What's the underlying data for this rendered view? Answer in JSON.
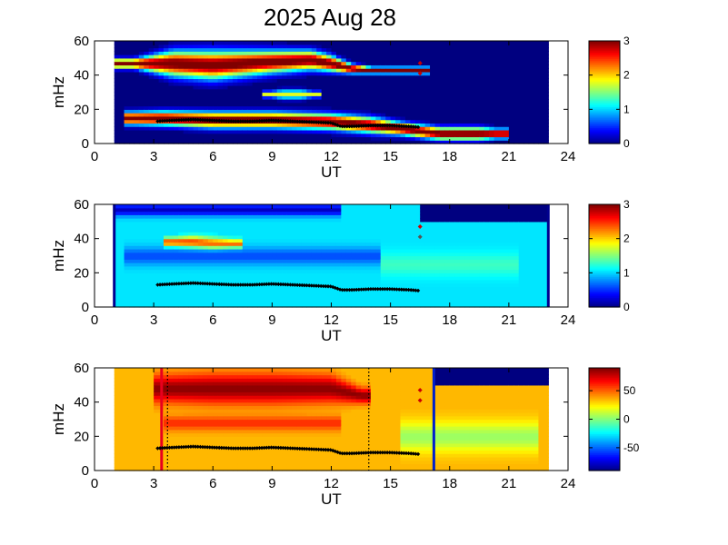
{
  "figure": {
    "title": "2025 Aug 28"
  },
  "chart_data": [
    {
      "type": "heatmap",
      "name": "panel-1",
      "xlabel": "UT",
      "ylabel": "mHz",
      "xlim": [
        0,
        24
      ],
      "ylim": [
        0,
        60
      ],
      "xticks": [
        0,
        3,
        6,
        9,
        12,
        15,
        18,
        21,
        24
      ],
      "yticks": [
        0,
        20,
        40,
        60
      ],
      "data_extent_x": [
        1,
        23
      ],
      "colorbar": {
        "range": [
          0,
          3
        ],
        "ticks": [
          0,
          1,
          2,
          3
        ]
      },
      "background_value": 0,
      "bands": [
        {
          "x": [
            2.0,
            3.5,
            6.0,
            9.0,
            12.0,
            14.0,
            15.5,
            17.5,
            19.5,
            20.3
          ],
          "y": [
            15,
            15,
            14,
            14,
            13,
            11,
            9,
            6,
            6,
            6
          ],
          "half_width": [
            4,
            4.5,
            5,
            5,
            5,
            5,
            4,
            4,
            4,
            3
          ],
          "value": 3.2
        },
        {
          "x": [
            1.0,
            2.0,
            4.0,
            6.0,
            9.0,
            11.0,
            12.0,
            13.0,
            14.0,
            16.5
          ],
          "y": [
            47,
            47,
            47,
            46,
            48,
            49,
            47,
            44,
            43,
            43
          ],
          "half_width": [
            3,
            3,
            8,
            9,
            7,
            6,
            5,
            3,
            2,
            2
          ],
          "value": 3.2
        },
        {
          "x": [
            9.0,
            9.5,
            10.5,
            11.0
          ],
          "y": [
            29,
            29,
            29,
            29
          ],
          "half_width": [
            2,
            3,
            3,
            2
          ],
          "value": 1.8
        }
      ],
      "ridge": {
        "x": [
          3.2,
          4.0,
          5.0,
          6.0,
          7.0,
          8.0,
          9.0,
          10.0,
          11.0,
          12.0,
          12.5,
          13.0,
          14.0,
          15.0,
          16.0,
          16.5
        ],
        "y": [
          13,
          13.5,
          14,
          13.5,
          13,
          13,
          13.5,
          13,
          12.5,
          12,
          10,
          10,
          10.5,
          10.5,
          10,
          9.5
        ]
      },
      "markers": [
        {
          "x": 16.5,
          "y": 47,
          "color": "#cc0000"
        },
        {
          "x": 16.5,
          "y": 41,
          "color": "#cc0000"
        }
      ]
    },
    {
      "type": "heatmap",
      "name": "panel-2",
      "xlabel": "UT",
      "ylabel": "mHz",
      "xlim": [
        0,
        24
      ],
      "ylim": [
        0,
        60
      ],
      "xticks": [
        0,
        3,
        6,
        9,
        12,
        15,
        18,
        21,
        24
      ],
      "yticks": [
        0,
        20,
        40,
        60
      ],
      "data_extent_x": [
        1,
        23
      ],
      "colorbar": {
        "range": [
          0,
          3
        ],
        "ticks": [
          0,
          1,
          2,
          3
        ]
      },
      "background_value": 1.05,
      "bands": [
        {
          "x": [
            1.0,
            4.0,
            8.0,
            12.0
          ],
          "y": [
            57,
            57,
            57,
            57
          ],
          "half_width": [
            4,
            4,
            4,
            4
          ],
          "value": 0.2
        },
        {
          "x": [
            4.0,
            5.0,
            6.0,
            7.0
          ],
          "y": [
            38,
            38,
            37,
            37
          ],
          "half_width": [
            3,
            4,
            4,
            3
          ],
          "value": 2.6
        },
        {
          "x": [
            2.0,
            8.0,
            14.0
          ],
          "y": [
            30,
            30,
            30
          ],
          "half_width": [
            6,
            6,
            6
          ],
          "value": 0.6
        },
        {
          "x": [
            15.0,
            18.0,
            21.0
          ],
          "y": [
            25,
            25,
            25
          ],
          "half_width": [
            8,
            8,
            8
          ],
          "value": 1.3
        }
      ],
      "masked_region": {
        "x_from": 16.5,
        "y_from": 50,
        "value": 0,
        "color": "#00008f"
      },
      "ridge": {
        "x": [
          3.2,
          4.0,
          5.0,
          6.0,
          7.0,
          8.0,
          9.0,
          10.0,
          11.0,
          12.0,
          12.5,
          13.0,
          14.0,
          15.0,
          16.0,
          16.5
        ],
        "y": [
          13,
          13.5,
          14,
          13.5,
          13,
          13,
          13.5,
          13,
          12.5,
          12,
          10,
          10,
          10.5,
          10.5,
          10,
          9.5
        ]
      },
      "markers": [
        {
          "x": 16.5,
          "y": 47,
          "color": "#cc0000"
        },
        {
          "x": 16.5,
          "y": 41,
          "color": "#555555"
        }
      ]
    },
    {
      "type": "heatmap",
      "name": "panel-3",
      "xlabel": "UT",
      "ylabel": "mHz",
      "xlim": [
        0,
        24
      ],
      "ylim": [
        0,
        60
      ],
      "xticks": [
        0,
        3,
        6,
        9,
        12,
        15,
        18,
        21,
        24
      ],
      "yticks": [
        0,
        20,
        40,
        60
      ],
      "data_extent_x": [
        1,
        23
      ],
      "colorbar": {
        "range": [
          -90,
          90
        ],
        "ticks": [
          50,
          0,
          -50
        ]
      },
      "background_value": 35,
      "bands": [
        {
          "x": [
            3.5,
            6.0,
            9.0,
            12.0,
            13.5
          ],
          "y": [
            48,
            48,
            48,
            48,
            44
          ],
          "half_width": [
            9,
            10,
            10,
            9,
            5
          ],
          "value": 88
        },
        {
          "x": [
            4.0,
            8.0,
            12.0
          ],
          "y": [
            28,
            28,
            28
          ],
          "half_width": [
            5,
            5,
            5
          ],
          "value": 60
        },
        {
          "x": [
            16.0,
            19.0,
            22.0
          ],
          "y": [
            20,
            20,
            20
          ],
          "half_width": [
            10,
            10,
            10
          ],
          "value": 5
        }
      ],
      "masked_region": {
        "x_from": 17.2,
        "y_from": 50,
        "value": -90,
        "color": "#00008f"
      },
      "ridge": {
        "x": [
          3.2,
          4.0,
          5.0,
          6.0,
          7.0,
          8.0,
          9.0,
          10.0,
          11.0,
          12.0,
          12.5,
          13.0,
          14.0,
          15.0,
          16.0,
          16.5
        ],
        "y": [
          13,
          13.5,
          14,
          13.5,
          13,
          13,
          13.5,
          13,
          12.5,
          12,
          10,
          10,
          10.5,
          10.5,
          10,
          9.5
        ]
      },
      "markers": [
        {
          "x": 16.5,
          "y": 47,
          "color": "#cc0000"
        },
        {
          "x": 16.5,
          "y": 41,
          "color": "#cc0000"
        }
      ],
      "vlines": [
        {
          "x": 3.4,
          "color": "#e8001e",
          "style": "solid"
        },
        {
          "x": 3.7,
          "color": "#000000",
          "style": "dotted"
        },
        {
          "x": 13.9,
          "color": "#000000",
          "style": "dotted"
        },
        {
          "x": 17.2,
          "color": "#0020cc",
          "style": "solid"
        }
      ]
    }
  ]
}
